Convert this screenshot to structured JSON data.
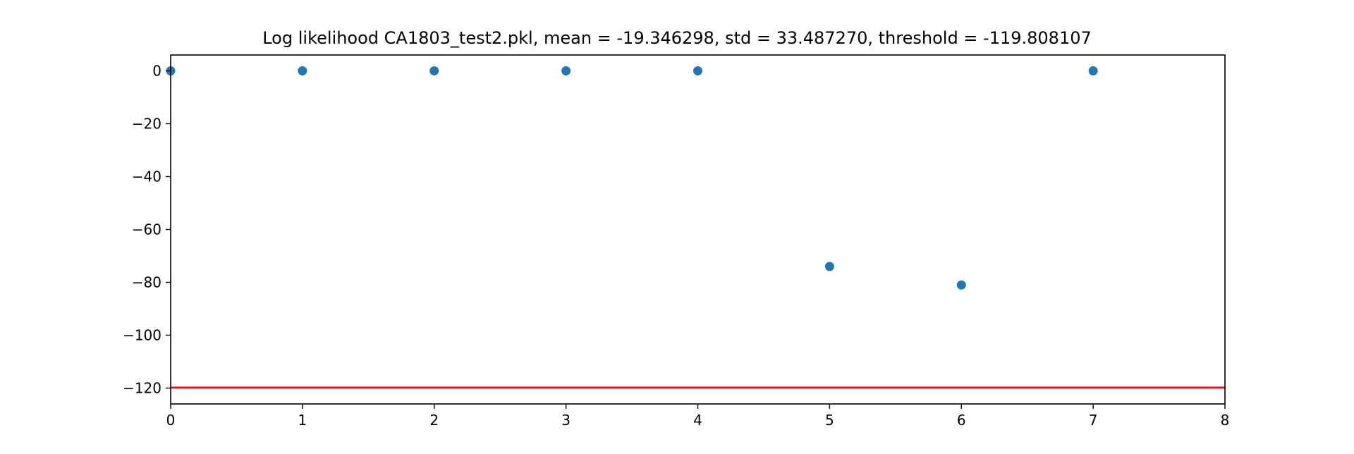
{
  "chart_data": {
    "type": "scatter",
    "title": "Log likelihood CA1803_test2.pkl, mean = -19.346298, std = 33.487270, threshold = -119.808107",
    "xlabel": "",
    "ylabel": "",
    "xlim": [
      0,
      8
    ],
    "ylim": [
      -126,
      6
    ],
    "xticks": [
      0,
      1,
      2,
      3,
      4,
      5,
      6,
      7,
      8
    ],
    "yticks": [
      0,
      -20,
      -40,
      -60,
      -80,
      -100,
      -120
    ],
    "series": [
      {
        "x": [
          0,
          1,
          2,
          3,
          4,
          5,
          6,
          7
        ],
        "y": [
          0,
          0,
          0,
          0,
          0,
          -74,
          -81,
          0
        ],
        "color": "#1f77b4"
      }
    ],
    "threshold": {
      "value": -119.808107,
      "color": "#ff0000"
    },
    "grid": false,
    "legend": "none"
  }
}
